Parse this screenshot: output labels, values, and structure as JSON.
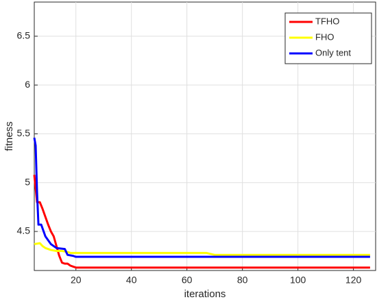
{
  "chart_data": {
    "type": "line",
    "x_label": "iterations",
    "y_label": "fitness",
    "xlim": [
      5,
      128
    ],
    "ylim": [
      4.1,
      6.85
    ],
    "xticks": [
      20,
      40,
      60,
      80,
      100,
      120
    ],
    "yticks": [
      4.5,
      5,
      5.5,
      6,
      6.5
    ],
    "grid": true,
    "legend": "upper right",
    "series": [
      {
        "name": "TFHO",
        "color": "#ff0000",
        "x": [
          5,
          6,
          7,
          8,
          9,
          10,
          11,
          12,
          13,
          14,
          15,
          16,
          17,
          18,
          19,
          20,
          40,
          60,
          80,
          100,
          126
        ],
        "values": [
          5.08,
          4.8,
          4.8,
          4.73,
          4.65,
          4.57,
          4.5,
          4.45,
          4.35,
          4.25,
          4.18,
          4.17,
          4.17,
          4.15,
          4.14,
          4.13,
          4.13,
          4.13,
          4.13,
          4.13,
          4.13
        ]
      },
      {
        "name": "FHO",
        "color": "#ffff00",
        "x": [
          5,
          7,
          8,
          9,
          11,
          13,
          15,
          17,
          18,
          67,
          70,
          126
        ],
        "values": [
          4.37,
          4.38,
          4.35,
          4.33,
          4.31,
          4.3,
          4.3,
          4.29,
          4.28,
          4.28,
          4.26,
          4.26
        ]
      },
      {
        "name": "Only tent",
        "color": "#0000ff",
        "x": [
          5,
          5.5,
          6,
          6.5,
          7.5,
          9,
          11,
          13,
          16,
          17,
          19,
          20,
          126
        ],
        "values": [
          5.46,
          5.38,
          4.9,
          4.57,
          4.57,
          4.45,
          4.37,
          4.33,
          4.32,
          4.26,
          4.25,
          4.24,
          4.24
        ]
      }
    ]
  }
}
